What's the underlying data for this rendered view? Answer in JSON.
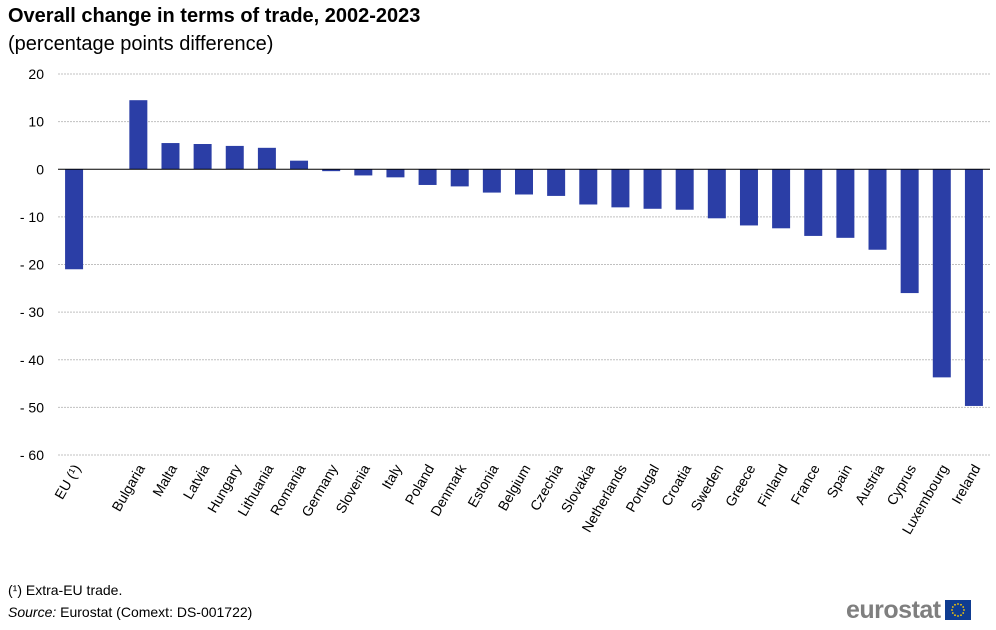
{
  "title": "Overall change in terms of trade, 2002-2023",
  "subtitle": "(percentage points difference)",
  "footnote": "(¹) Extra-EU trade.",
  "source": {
    "label": "Source:",
    "text": " Eurostat (Comext: DS-001722)"
  },
  "logo": {
    "text": "eurostat",
    "flag_icon": "eu-flag-icon"
  },
  "colors": {
    "bar": "#2b3ea6",
    "grid": "#c0c0c0",
    "axis": "#000000",
    "logo_text": "#7f7f7f",
    "flag_blue": "#0f3c91",
    "flag_star": "#ffcc00"
  },
  "chart_data": {
    "type": "bar",
    "title": "Overall change in terms of trade, 2002-2023",
    "subtitle": "(percentage points difference)",
    "xlabel": "",
    "ylabel": "",
    "ylim": [
      -60,
      20
    ],
    "yticks": [
      20,
      10,
      0,
      -10,
      -20,
      -30,
      -40,
      -50,
      -60
    ],
    "ytick_labels": [
      "20",
      "10",
      "0",
      "- 10",
      "- 20",
      "- 30",
      "- 40",
      "- 50",
      "- 60"
    ],
    "grid": true,
    "legend": "none",
    "categories": [
      "EU (¹)",
      "",
      "Bulgaria",
      "Malta",
      "Latvia",
      "Hungary",
      "Lithuania",
      "Romania",
      "Germany",
      "Slovenia",
      "Italy",
      "Poland",
      "Denmark",
      "Estonia",
      "Belgium",
      "Czechia",
      "Slovakia",
      "Netherlands",
      "Portugal",
      "Croatia",
      "Sweden",
      "Greece",
      "Finland",
      "France",
      "Spain",
      "Austria",
      "Cyprus",
      "Luxembourg",
      "Ireland"
    ],
    "values": [
      -21.0,
      null,
      14.5,
      5.5,
      5.3,
      4.9,
      4.5,
      1.8,
      -0.4,
      -1.3,
      -1.7,
      -3.3,
      -3.6,
      -4.9,
      -5.3,
      -5.6,
      -7.4,
      -8.0,
      -8.3,
      -8.5,
      -10.3,
      -11.8,
      -12.4,
      -14.0,
      -14.4,
      -16.9,
      -26.0,
      -43.7,
      -49.7
    ]
  }
}
